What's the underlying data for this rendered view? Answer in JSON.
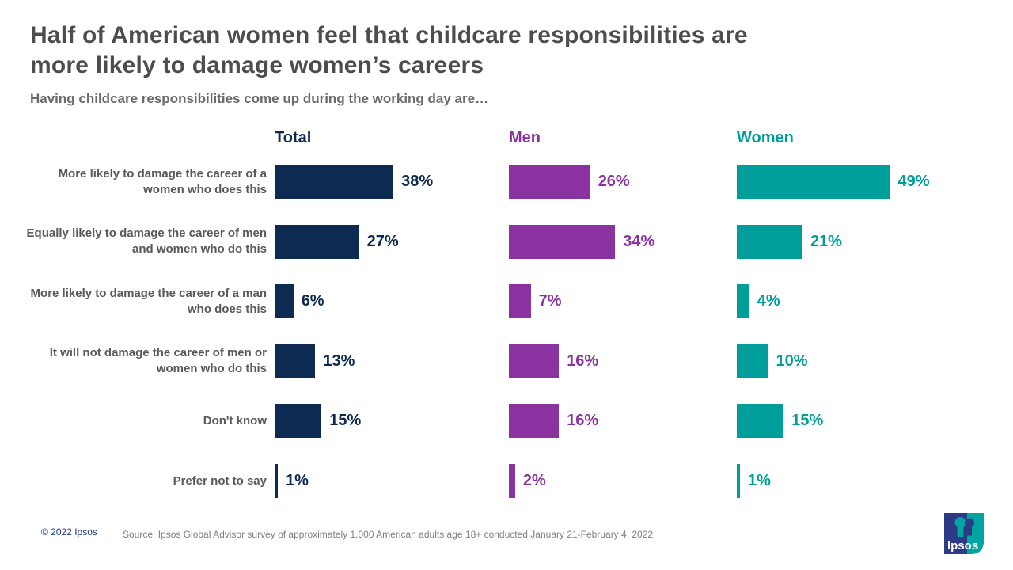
{
  "header": {
    "title_lines": [
      "Half of American women feel that childcare responsibilities are",
      "more likely to damage women’s careers"
    ],
    "subtitle": "Having childcare responsibilities come up during the working day are…"
  },
  "chart_data": {
    "type": "bar",
    "orientation": "horizontal",
    "unit": "%",
    "xlim": [
      0,
      50
    ],
    "grid": false,
    "legend_position": "column-headers",
    "categories": [
      "More likely to damage the career of a women who does this",
      "Equally likely to damage the career of men and women who do this",
      "More likely to damage the career of a man who does this",
      "It will not damage the career of men or women who do this",
      "Don't know",
      "Prefer not to say"
    ],
    "series": [
      {
        "name": "Total",
        "color": "#0d2a52",
        "values": [
          38,
          27,
          6,
          13,
          15,
          1
        ]
      },
      {
        "name": "Men",
        "color": "#8a33a0",
        "values": [
          26,
          34,
          7,
          16,
          16,
          2
        ]
      },
      {
        "name": "Women",
        "color": "#009e9a",
        "values": [
          49,
          21,
          4,
          10,
          15,
          1
        ]
      }
    ]
  },
  "footer": {
    "copyright": "© 2022 Ipsos",
    "source": "Source: Ipsos Global Advisor survey of approximately 1,000 American adults age 18+ conducted January 21-February 4, 2022",
    "logo_text": "Ipsos"
  },
  "colors": {
    "title_gray": "#4d4d4d",
    "subtitle_gray": "#6a6a6a",
    "label_gray": "#595959",
    "source_gray": "#7f7f7f",
    "copyright_navy": "#233a7d",
    "logo_blue": "#2e3a87",
    "logo_teal": "#00a5a0"
  }
}
